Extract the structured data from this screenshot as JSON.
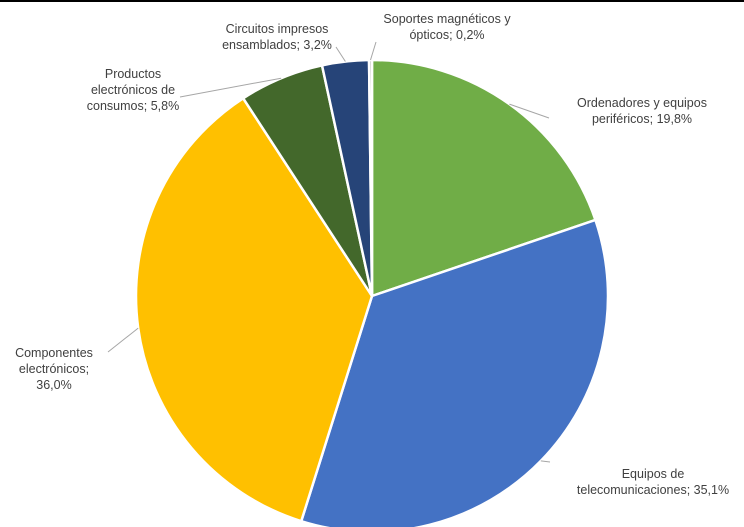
{
  "chart_data": {
    "type": "pie",
    "title": "",
    "slices": [
      {
        "name": "Ordenadores y equipos periféricos",
        "value": 19.8,
        "color": "#70ad47",
        "label_lines": [
          "Ordenadores y equipos",
          "periféricos; 19,8%"
        ]
      },
      {
        "name": "Equipos de telecomunicaciones",
        "value": 35.1,
        "color": "#4472c4",
        "label_lines": [
          "Equipos de",
          "telecomunicaciones; 35,1%"
        ]
      },
      {
        "name": "Componentes electrónicos",
        "value": 36.0,
        "color": "#ffc000",
        "label_lines": [
          "Componentes",
          "electrónicos;",
          "36,0%"
        ]
      },
      {
        "name": "Productos electrónicos de consumos",
        "value": 5.8,
        "color": "#43682b",
        "label_lines": [
          "Productos",
          "electrónicos de",
          "consumos; 5,8%"
        ]
      },
      {
        "name": "Circuitos impresos ensamblados",
        "value": 3.2,
        "color": "#264478",
        "label_lines": [
          "Circuitos impresos",
          "ensamblados; 3,2%"
        ]
      },
      {
        "name": "Soportes magnéticos y ópticos",
        "value": 0.2,
        "color": "#a5a5a5",
        "label_lines": [
          "Soportes magnéticos y",
          "ópticos; 0,2%"
        ]
      }
    ],
    "start_angle_deg": 0,
    "direction": "clockwise",
    "legend": "none",
    "slice_border_color": "#ffffff",
    "leader_line_color": "#a6a6a6"
  }
}
